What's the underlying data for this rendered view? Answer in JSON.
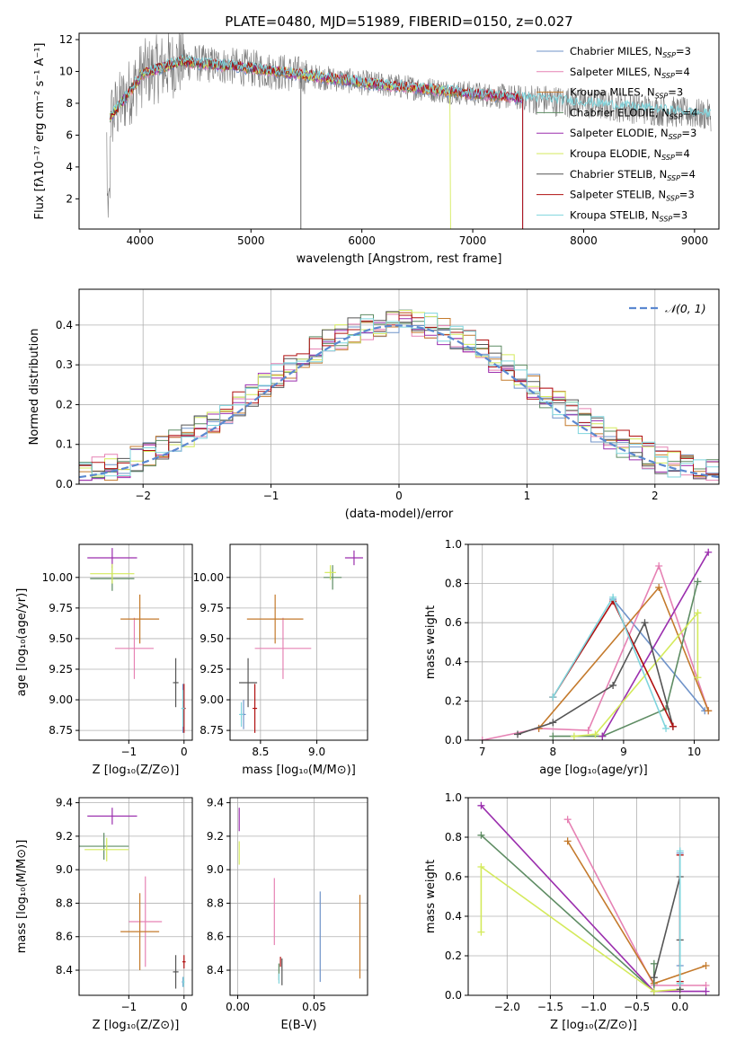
{
  "figure": {
    "title": "PLATE=0480, MJD=51989, FIBERID=0150, z=0.027"
  },
  "models": [
    {
      "name": "Chabrier MILES",
      "nssp": "3",
      "color": "#6f93c9"
    },
    {
      "name": "Salpeter MILES",
      "nssp": "4",
      "color": "#e682b4"
    },
    {
      "name": "Kroupa MILES",
      "nssp": "3",
      "color": "#c47a2c"
    },
    {
      "name": "Chabrier ELODIE",
      "nssp": "4",
      "color": "#5e8c63"
    },
    {
      "name": "Salpeter ELODIE",
      "nssp": "3",
      "color": "#9b2fae"
    },
    {
      "name": "Kroupa ELODIE",
      "nssp": "4",
      "color": "#d4ea5c"
    },
    {
      "name": "Chabrier STELIB",
      "nssp": "4",
      "color": "#555555"
    },
    {
      "name": "Salpeter STELIB",
      "nssp": "3",
      "color": "#b01010"
    },
    {
      "name": "Kroupa STELIB",
      "nssp": "3",
      "color": "#7fd5dd"
    }
  ],
  "legend": {
    "nssp_prefix": "N",
    "nssp_sub": "SSP",
    "normal_label": "𝒩(0, 1)"
  },
  "chart_data": [
    {
      "id": "spectrum",
      "type": "line",
      "title": "PLATE=0480, MJD=51989, FIBERID=0150, z=0.027",
      "xlabel": "wavelength [Angstrom, rest frame]",
      "ylabel": "Flux [fλ10⁻¹⁷ erg cm⁻² s⁻¹ A⁻¹]",
      "xlim": [
        3450,
        9220
      ],
      "ylim": [
        0.1,
        12.4
      ],
      "xticks": [
        4000,
        5000,
        6000,
        7000,
        8000,
        9000
      ],
      "yticks": [
        2,
        4,
        6,
        8,
        10,
        12
      ],
      "data_color": "#777777",
      "data_range": [
        3700,
        9150
      ],
      "model_end_wavelengths": [
        7450,
        7450,
        7450,
        7450,
        7450,
        6800,
        5450,
        7450,
        9150
      ],
      "legend_position": "upper right"
    },
    {
      "id": "residuals",
      "type": "line",
      "xlabel": "(data-model)/error",
      "ylabel": "Normed distribution",
      "xlim": [
        -2.5,
        2.5
      ],
      "ylim": [
        0,
        0.49
      ],
      "xticks": [
        -2,
        -1,
        0,
        1,
        2
      ],
      "yticks": [
        0.0,
        0.1,
        0.2,
        0.3,
        0.4
      ],
      "grid": true,
      "normal_curve": {
        "name": "𝒩(0, 1)",
        "mean": 0,
        "sigma": 1,
        "color": "#5b88d0"
      },
      "legend_position": "upper right"
    },
    {
      "id": "age_vs_Z",
      "type": "scatter",
      "xlabel": "Z [log₁₀(Z/Z⊙)]",
      "ylabel": "age  [log₁₀(age/yr)]",
      "xlim": [
        -1.9,
        0.15
      ],
      "ylim": [
        8.67,
        10.27
      ],
      "xticks": [
        -1,
        0
      ],
      "yticks": [
        8.75,
        9.0,
        9.25,
        9.5,
        9.75,
        10.0
      ],
      "grid": true,
      "points": [
        {
          "model": 0,
          "x": -0.02,
          "y": 8.93,
          "xerr": 0.02,
          "yerr": 0.2
        },
        {
          "model": 1,
          "x": -0.9,
          "y": 9.42,
          "xerr": 0.35,
          "yerr": 0.25
        },
        {
          "model": 2,
          "x": -0.8,
          "y": 9.66,
          "xerr": 0.35,
          "yerr": 0.2
        },
        {
          "model": 3,
          "x": -1.3,
          "y": 9.99,
          "xerr": 0.4,
          "yerr": 0.1
        },
        {
          "model": 4,
          "x": -1.3,
          "y": 10.16,
          "xerr": 0.45,
          "yerr": 0.08
        },
        {
          "model": 5,
          "x": -1.3,
          "y": 10.03,
          "xerr": 0.4,
          "yerr": 0.08
        },
        {
          "model": 6,
          "x": -0.15,
          "y": 9.14,
          "xerr": 0.05,
          "yerr": 0.2
        },
        {
          "model": 7,
          "x": 0.0,
          "y": 8.93,
          "xerr": 0.03,
          "yerr": 0.2
        },
        {
          "model": 8,
          "x": -0.02,
          "y": 8.93,
          "xerr": 0.03,
          "yerr": 0.15
        }
      ]
    },
    {
      "id": "age_vs_mass",
      "type": "scatter",
      "xlabel": "mass [log₁₀(M/M⊙)]",
      "ylabel": "",
      "xlim": [
        8.23,
        9.45
      ],
      "ylim": [
        8.67,
        10.27
      ],
      "xticks": [
        8.5,
        9.0
      ],
      "yticks": [
        8.75,
        9.0,
        9.25,
        9.5,
        9.75,
        10.0
      ],
      "grid": true,
      "points": [
        {
          "model": 0,
          "x": 8.35,
          "y": 8.88,
          "xerr": 0.02,
          "yerr": 0.12
        },
        {
          "model": 1,
          "x": 8.7,
          "y": 9.42,
          "xerr": 0.25,
          "yerr": 0.25
        },
        {
          "model": 2,
          "x": 8.63,
          "y": 9.66,
          "xerr": 0.25,
          "yerr": 0.2
        },
        {
          "model": 3,
          "x": 9.14,
          "y": 10.0,
          "xerr": 0.08,
          "yerr": 0.1
        },
        {
          "model": 4,
          "x": 9.33,
          "y": 10.16,
          "xerr": 0.08,
          "yerr": 0.06
        },
        {
          "model": 5,
          "x": 9.12,
          "y": 10.04,
          "xerr": 0.05,
          "yerr": 0.06
        },
        {
          "model": 6,
          "x": 8.39,
          "y": 9.14,
          "xerr": 0.08,
          "yerr": 0.2
        },
        {
          "model": 7,
          "x": 8.45,
          "y": 8.93,
          "xerr": 0.02,
          "yerr": 0.2
        },
        {
          "model": 8,
          "x": 8.33,
          "y": 8.88,
          "xerr": 0.02,
          "yerr": 0.1
        }
      ]
    },
    {
      "id": "massweight_vs_age",
      "type": "line",
      "xlabel": "age  [log₁₀(age/yr)]",
      "ylabel": "mass weight",
      "xlim": [
        6.8,
        10.35
      ],
      "ylim": [
        0,
        1.0
      ],
      "xticks": [
        7,
        8,
        9,
        10
      ],
      "yticks": [
        0.0,
        0.2,
        0.4,
        0.6,
        0.8,
        1.0
      ],
      "grid": true,
      "series": [
        {
          "model": 0,
          "x": [
            8.85,
            10.15
          ],
          "y": [
            0.72,
            0.15
          ]
        },
        {
          "model": 1,
          "x": [
            7.0,
            7.8,
            8.5,
            9.5,
            10.2
          ],
          "y": [
            0.0,
            0.06,
            0.05,
            0.89,
            0.15
          ]
        },
        {
          "model": 2,
          "x": [
            7.8,
            9.5,
            10.2
          ],
          "y": [
            0.06,
            0.78,
            0.15
          ]
        },
        {
          "model": 3,
          "x": [
            8.0,
            8.7,
            9.6,
            10.05
          ],
          "y": [
            0.02,
            0.02,
            0.16,
            0.81
          ]
        },
        {
          "model": 4,
          "x": [
            8.7,
            10.2
          ],
          "y": [
            0.02,
            0.96
          ]
        },
        {
          "model": 5,
          "x": [
            8.3,
            8.6,
            10.05,
            10.05
          ],
          "y": [
            0.02,
            0.03,
            0.65,
            0.32
          ]
        },
        {
          "model": 6,
          "x": [
            7.5,
            8.0,
            8.85,
            9.3,
            9.7
          ],
          "y": [
            0.03,
            0.09,
            0.28,
            0.6,
            0.07
          ]
        },
        {
          "model": 7,
          "x": [
            8.0,
            8.85,
            9.7
          ],
          "y": [
            0.22,
            0.71,
            0.07
          ]
        },
        {
          "model": 8,
          "x": [
            8.0,
            8.85,
            9.6
          ],
          "y": [
            0.22,
            0.73,
            0.06
          ]
        }
      ]
    },
    {
      "id": "mass_vs_Z",
      "type": "scatter",
      "xlabel": "Z [log₁₀(Z/Z⊙)]",
      "ylabel": "mass [log₁₀(M/M⊙)]",
      "xlim": [
        -1.9,
        0.15
      ],
      "ylim": [
        8.25,
        9.43
      ],
      "xticks": [
        -1,
        0
      ],
      "yticks": [
        8.4,
        8.6,
        8.8,
        9.0,
        9.2,
        9.4
      ],
      "grid": true,
      "points": [
        {
          "model": 0,
          "x": -0.02,
          "y": 8.33,
          "xerr": 0.02,
          "yerr": 0.03
        },
        {
          "model": 1,
          "x": -0.7,
          "y": 8.69,
          "xerr": 0.3,
          "yerr": 0.27
        },
        {
          "model": 2,
          "x": -0.8,
          "y": 8.63,
          "xerr": 0.35,
          "yerr": 0.23
        },
        {
          "model": 3,
          "x": -1.45,
          "y": 9.14,
          "xerr": 0.45,
          "yerr": 0.08
        },
        {
          "model": 4,
          "x": -1.3,
          "y": 9.32,
          "xerr": 0.45,
          "yerr": 0.05
        },
        {
          "model": 5,
          "x": -1.4,
          "y": 9.12,
          "xerr": 0.4,
          "yerr": 0.07
        },
        {
          "model": 6,
          "x": -0.15,
          "y": 8.39,
          "xerr": 0.05,
          "yerr": 0.1
        },
        {
          "model": 7,
          "x": 0.0,
          "y": 8.45,
          "xerr": 0.03,
          "yerr": 0.04
        },
        {
          "model": 8,
          "x": -0.01,
          "y": 8.33,
          "xerr": 0.02,
          "yerr": 0.03
        }
      ]
    },
    {
      "id": "mass_vs_EBV",
      "type": "scatter",
      "xlabel": "E(B-V)",
      "ylabel": "",
      "xlim": [
        -0.005,
        0.085
      ],
      "ylim": [
        8.25,
        9.43
      ],
      "xticks": [
        0.0,
        0.05
      ],
      "yticks": [
        8.4,
        8.6,
        8.8,
        9.0,
        9.2,
        9.4
      ],
      "grid": true,
      "points": [
        {
          "model": 0,
          "x": 0.054,
          "y": 8.6,
          "xerr": 0,
          "yerr": 0.27
        },
        {
          "model": 1,
          "x": 0.024,
          "y": 8.75,
          "xerr": 0,
          "yerr": 0.2
        },
        {
          "model": 2,
          "x": 0.08,
          "y": 8.6,
          "xerr": 0,
          "yerr": 0.25
        },
        {
          "model": 3,
          "x": 0.027,
          "y": 8.39,
          "xerr": 0,
          "yerr": 0.05
        },
        {
          "model": 4,
          "x": 0.001,
          "y": 9.3,
          "xerr": 0,
          "yerr": 0.07
        },
        {
          "model": 5,
          "x": 0.001,
          "y": 9.1,
          "xerr": 0,
          "yerr": 0.07
        },
        {
          "model": 6,
          "x": 0.029,
          "y": 8.39,
          "xerr": 0,
          "yerr": 0.08
        },
        {
          "model": 7,
          "x": 0.028,
          "y": 8.45,
          "xerr": 0,
          "yerr": 0.03
        },
        {
          "model": 8,
          "x": 0.027,
          "y": 8.35,
          "xerr": 0,
          "yerr": 0.03
        }
      ]
    },
    {
      "id": "massweight_vs_Z",
      "type": "line",
      "xlabel": "Z [log₁₀(Z/Z⊙)]",
      "ylabel": "mass weight",
      "xlim": [
        -2.45,
        0.45
      ],
      "ylim": [
        0,
        1.0
      ],
      "xticks": [
        -2.0,
        -1.5,
        -1.0,
        -0.5,
        0.0
      ],
      "yticks": [
        0.0,
        0.2,
        0.4,
        0.6,
        0.8,
        1.0
      ],
      "grid": true,
      "series": [
        {
          "model": 0,
          "x": [
            0.0,
            0.0
          ],
          "y": [
            0.72,
            0.15
          ]
        },
        {
          "model": 1,
          "x": [
            -1.3,
            -0.3,
            0.3
          ],
          "y": [
            0.89,
            0.05,
            0.05
          ]
        },
        {
          "model": 2,
          "x": [
            -1.3,
            -0.3,
            0.3
          ],
          "y": [
            0.78,
            0.06,
            0.15
          ]
        },
        {
          "model": 3,
          "x": [
            -2.3,
            -0.3,
            -0.3
          ],
          "y": [
            0.81,
            0.02,
            0.16
          ]
        },
        {
          "model": 4,
          "x": [
            -2.3,
            -0.3,
            0.3
          ],
          "y": [
            0.96,
            0.02,
            0.02
          ]
        },
        {
          "model": 5,
          "x": [
            -2.3,
            -2.3,
            -0.3,
            0.0
          ],
          "y": [
            0.32,
            0.65,
            0.02,
            0.03
          ]
        },
        {
          "model": 6,
          "x": [
            -0.3,
            0.0,
            0.0,
            0.0
          ],
          "y": [
            0.09,
            0.6,
            0.28,
            0.03
          ]
        },
        {
          "model": 7,
          "x": [
            0.0,
            0.0
          ],
          "y": [
            0.71,
            0.07
          ]
        },
        {
          "model": 8,
          "x": [
            0.0,
            0.0
          ],
          "y": [
            0.73,
            0.06
          ]
        }
      ]
    }
  ]
}
